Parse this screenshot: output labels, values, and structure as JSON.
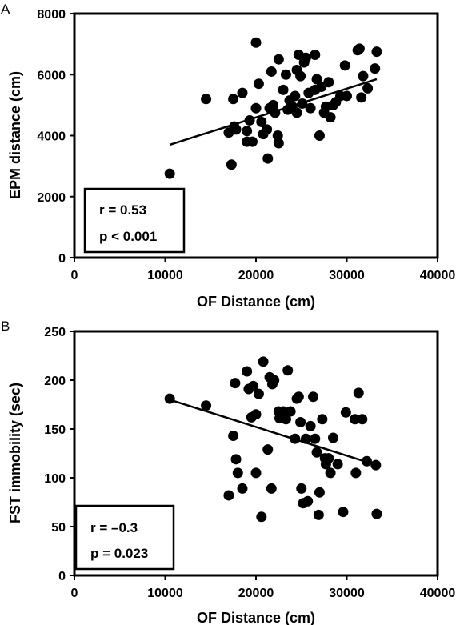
{
  "chart_data": [
    {
      "type": "scatter",
      "panel_label": "A",
      "xlabel": "OF Distance (cm)",
      "ylabel": "EPM distance (cm)",
      "xlim": [
        0,
        40000
      ],
      "ylim": [
        0,
        8000
      ],
      "xticks": [
        "0",
        "10000",
        "20000",
        "30000",
        "40000"
      ],
      "yticks": [
        "0",
        "2000",
        "4000",
        "6000",
        "8000"
      ],
      "grid": false,
      "stats": [
        "r = 0.53",
        "p < 0.001"
      ],
      "trend_line": {
        "x": [
          10500,
          33300
        ],
        "y": [
          3700,
          5850
        ]
      },
      "points": [
        [
          10500,
          2750
        ],
        [
          14500,
          5200
        ],
        [
          17500,
          5200
        ],
        [
          18500,
          5400
        ],
        [
          17000,
          4100
        ],
        [
          17600,
          4300
        ],
        [
          17800,
          4200
        ],
        [
          17300,
          3050
        ],
        [
          19000,
          3800
        ],
        [
          19300,
          4500
        ],
        [
          19600,
          3800
        ],
        [
          19000,
          4150
        ],
        [
          20000,
          7050
        ],
        [
          20000,
          4900
        ],
        [
          20300,
          5700
        ],
        [
          20600,
          4450
        ],
        [
          20800,
          4050
        ],
        [
          21200,
          4200
        ],
        [
          21300,
          3250
        ],
        [
          21500,
          4900
        ],
        [
          21700,
          6100
        ],
        [
          21900,
          5000
        ],
        [
          22100,
          4750
        ],
        [
          22400,
          4000
        ],
        [
          22500,
          3750
        ],
        [
          22500,
          6500
        ],
        [
          23000,
          5500
        ],
        [
          23300,
          6000
        ],
        [
          23500,
          4850
        ],
        [
          23700,
          5150
        ],
        [
          24000,
          4950
        ],
        [
          24300,
          5300
        ],
        [
          24500,
          4750
        ],
        [
          24500,
          6150
        ],
        [
          24700,
          6650
        ],
        [
          24900,
          5950
        ],
        [
          25100,
          5050
        ],
        [
          25300,
          6400
        ],
        [
          25500,
          6550
        ],
        [
          25800,
          5400
        ],
        [
          26000,
          4900
        ],
        [
          26500,
          5500
        ],
        [
          26500,
          6650
        ],
        [
          26700,
          5850
        ],
        [
          27000,
          4000
        ],
        [
          27200,
          5600
        ],
        [
          27500,
          4750
        ],
        [
          27700,
          4950
        ],
        [
          28000,
          5750
        ],
        [
          28200,
          4600
        ],
        [
          28500,
          5000
        ],
        [
          28800,
          5100
        ],
        [
          29300,
          5300
        ],
        [
          29800,
          6300
        ],
        [
          30000,
          5300
        ],
        [
          31200,
          6800
        ],
        [
          31400,
          6850
        ],
        [
          31600,
          5250
        ],
        [
          31800,
          5950
        ],
        [
          32300,
          5550
        ],
        [
          33100,
          6200
        ],
        [
          33300,
          6750
        ]
      ]
    },
    {
      "type": "scatter",
      "panel_label": "B",
      "xlabel": "OF Distance (cm)",
      "ylabel": "FST immobility (sec)",
      "xlim": [
        0,
        40000
      ],
      "ylim": [
        0,
        250
      ],
      "xticks": [
        "0",
        "10000",
        "20000",
        "30000",
        "40000"
      ],
      "yticks": [
        "0",
        "50",
        "100",
        "150",
        "200",
        "250"
      ],
      "grid": false,
      "stats": [
        "r = –0.3",
        "p = 0.023"
      ],
      "trend_line": {
        "x": [
          10500,
          33300
        ],
        "y": [
          180,
          113
        ]
      },
      "points": [
        [
          10500,
          181
        ],
        [
          14500,
          174
        ],
        [
          17000,
          82
        ],
        [
          17500,
          143
        ],
        [
          17700,
          197
        ],
        [
          17800,
          119
        ],
        [
          18000,
          105
        ],
        [
          18500,
          89
        ],
        [
          19000,
          209
        ],
        [
          19200,
          191
        ],
        [
          19500,
          162
        ],
        [
          19700,
          194
        ],
        [
          20000,
          165
        ],
        [
          20000,
          105
        ],
        [
          20300,
          186
        ],
        [
          20600,
          60
        ],
        [
          20800,
          219
        ],
        [
          21300,
          129
        ],
        [
          21500,
          203
        ],
        [
          21700,
          89
        ],
        [
          21800,
          196
        ],
        [
          22000,
          200
        ],
        [
          22500,
          168
        ],
        [
          22600,
          161
        ],
        [
          23000,
          168
        ],
        [
          23300,
          160
        ],
        [
          23500,
          210
        ],
        [
          23800,
          168
        ],
        [
          24300,
          140
        ],
        [
          24500,
          181
        ],
        [
          24700,
          183
        ],
        [
          24900,
          157
        ],
        [
          25000,
          89
        ],
        [
          25200,
          74
        ],
        [
          25500,
          140
        ],
        [
          25700,
          76
        ],
        [
          26000,
          153
        ],
        [
          26300,
          183
        ],
        [
          26500,
          140
        ],
        [
          26700,
          126
        ],
        [
          26900,
          62
        ],
        [
          27000,
          85
        ],
        [
          27300,
          160
        ],
        [
          27600,
          120
        ],
        [
          27700,
          114
        ],
        [
          28000,
          120
        ],
        [
          28200,
          105
        ],
        [
          28500,
          141
        ],
        [
          29000,
          114
        ],
        [
          29600,
          65
        ],
        [
          29900,
          167
        ],
        [
          30900,
          160
        ],
        [
          31000,
          105
        ],
        [
          31300,
          187
        ],
        [
          31700,
          160
        ],
        [
          32200,
          117
        ],
        [
          33200,
          113
        ],
        [
          33300,
          63
        ]
      ]
    }
  ]
}
